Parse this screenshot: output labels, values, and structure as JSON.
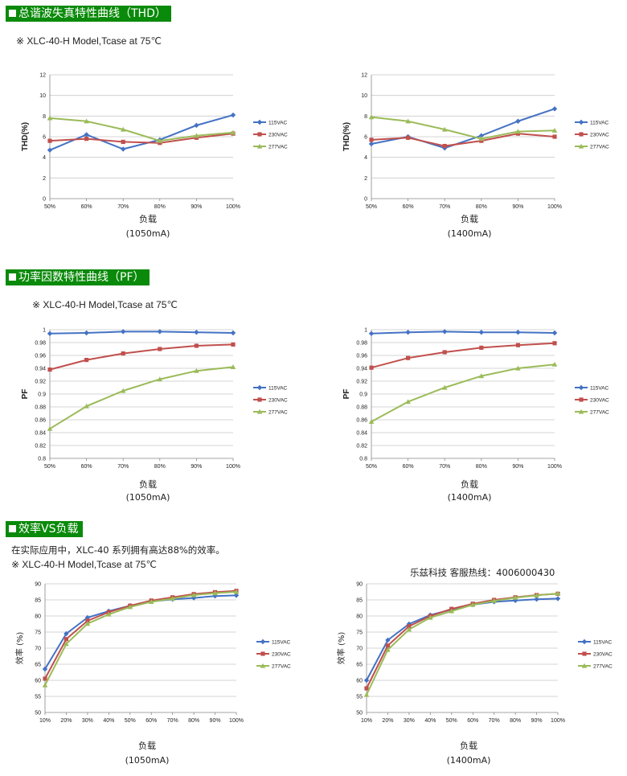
{
  "colors": {
    "banner": "#0a8a0a",
    "s115": "#4472c4",
    "s230": "#c0504d",
    "s277": "#9bbb59",
    "grid": "#c8c8c8"
  },
  "sections": {
    "thd": {
      "title": "总谐波失真特性曲线（THD）",
      "note": "※ XLC-40-H Model,Tcase at 75℃"
    },
    "pf": {
      "title": "功率因数特性曲线（PF）",
      "note": "※ XLC-40-H Model,Tcase at 75℃"
    },
    "eff": {
      "title": "效率VS负载",
      "note1": "在实际应用中，XLC-40 系列拥有高达88%的效率。",
      "note2": "※ XLC-40-H Model,Tcase at 75℃",
      "hotline": "乐兹科技 客服热线：4006000430"
    }
  },
  "chart_data": [
    {
      "type": "line",
      "xlabel": "负载",
      "xlabel2": "(1050mA)",
      "ylabel": "THD(%)",
      "categories": [
        "50%",
        "60%",
        "70%",
        "80%",
        "90%",
        "100%"
      ],
      "ylim": [
        0,
        12
      ],
      "yticks": [
        "0",
        "2",
        "4",
        "6",
        "8",
        "10",
        "12"
      ],
      "legend": "right",
      "grid": true,
      "series": [
        {
          "name": "115VAC",
          "values": [
            4.7,
            6.2,
            4.8,
            5.7,
            7.1,
            8.1
          ]
        },
        {
          "name": "230VAC",
          "values": [
            5.6,
            5.8,
            5.5,
            5.4,
            5.9,
            6.3
          ]
        },
        {
          "name": "277VAC",
          "values": [
            7.8,
            7.5,
            6.7,
            5.6,
            6.1,
            6.4
          ]
        }
      ]
    },
    {
      "type": "line",
      "xlabel": "负载",
      "xlabel2": "(1400mA)",
      "ylabel": "THD(%)",
      "categories": [
        "50%",
        "60%",
        "70%",
        "80%",
        "90%",
        "100%"
      ],
      "ylim": [
        0,
        12
      ],
      "yticks": [
        "0",
        "2",
        "4",
        "6",
        "8",
        "10",
        "12"
      ],
      "legend": "right",
      "grid": true,
      "series": [
        {
          "name": "115VAC",
          "values": [
            5.3,
            6.0,
            4.9,
            6.1,
            7.5,
            8.7
          ]
        },
        {
          "name": "230VAC",
          "values": [
            5.7,
            5.9,
            5.1,
            5.6,
            6.3,
            6.0
          ]
        },
        {
          "name": "277VAC",
          "values": [
            7.9,
            7.5,
            6.7,
            5.8,
            6.5,
            6.6
          ]
        }
      ]
    },
    {
      "type": "line",
      "xlabel": "负载",
      "xlabel2": "(1050mA)",
      "ylabel": "PF",
      "categories": [
        "50%",
        "60%",
        "70%",
        "80%",
        "90%",
        "100%"
      ],
      "ylim": [
        0.8,
        1.0
      ],
      "yticks": [
        "0.8",
        "0.82",
        "0.84",
        "0.86",
        "0.88",
        "0.9",
        "0.92",
        "0.94",
        "0.96",
        "0.98",
        "1"
      ],
      "legend": "right",
      "grid": true,
      "series": [
        {
          "name": "115VAC",
          "values": [
            0.994,
            0.995,
            0.997,
            0.997,
            0.996,
            0.995
          ]
        },
        {
          "name": "230VAC",
          "values": [
            0.938,
            0.953,
            0.963,
            0.97,
            0.975,
            0.977
          ]
        },
        {
          "name": "277VAC",
          "values": [
            0.846,
            0.881,
            0.905,
            0.923,
            0.936,
            0.942
          ]
        }
      ]
    },
    {
      "type": "line",
      "xlabel": "负载",
      "xlabel2": "(1400mA)",
      "ylabel": "PF",
      "categories": [
        "50%",
        "60%",
        "70%",
        "80%",
        "90%",
        "100%"
      ],
      "ylim": [
        0.8,
        1.0
      ],
      "yticks": [
        "0.8",
        "0.82",
        "0.84",
        "0.86",
        "0.88",
        "0.9",
        "0.92",
        "0.94",
        "0.96",
        "0.98",
        "1"
      ],
      "legend": "right",
      "grid": true,
      "series": [
        {
          "name": "115VAC",
          "values": [
            0.994,
            0.996,
            0.997,
            0.996,
            0.996,
            0.995
          ]
        },
        {
          "name": "230VAC",
          "values": [
            0.941,
            0.956,
            0.965,
            0.972,
            0.976,
            0.979
          ]
        },
        {
          "name": "277VAC",
          "values": [
            0.857,
            0.888,
            0.91,
            0.928,
            0.94,
            0.946
          ]
        }
      ]
    },
    {
      "type": "line",
      "xlabel": "负载",
      "xlabel2": "(1050mA)",
      "ylabel": "效率 (%)",
      "categories": [
        "10%",
        "20%",
        "30%",
        "40%",
        "50%",
        "60%",
        "70%",
        "80%",
        "90%",
        "100%"
      ],
      "ylim": [
        50,
        90
      ],
      "yticks": [
        "50",
        "55",
        "60",
        "65",
        "70",
        "75",
        "80",
        "85",
        "90"
      ],
      "legend": "right",
      "grid": true,
      "series": [
        {
          "name": "115VAC",
          "values": [
            63.5,
            74.5,
            79.5,
            81.5,
            83.2,
            84.5,
            85.2,
            85.6,
            86.2,
            86.4
          ]
        },
        {
          "name": "230VAC",
          "values": [
            60.5,
            72.8,
            78.5,
            81.2,
            83.2,
            84.8,
            85.8,
            86.8,
            87.4,
            87.8
          ]
        },
        {
          "name": "277VAC",
          "values": [
            58.5,
            71.3,
            77.6,
            80.5,
            82.8,
            84.4,
            85.4,
            86.5,
            87.1,
            87.5
          ]
        }
      ]
    },
    {
      "type": "line",
      "xlabel": "负载",
      "xlabel2": "(1400mA)",
      "ylabel": "效率 (%)",
      "categories": [
        "10%",
        "20%",
        "30%",
        "40%",
        "50%",
        "60%",
        "70%",
        "80%",
        "90%",
        "100%"
      ],
      "ylim": [
        50,
        90
      ],
      "yticks": [
        "50",
        "55",
        "60",
        "65",
        "70",
        "75",
        "80",
        "85",
        "90"
      ],
      "legend": "right",
      "grid": true,
      "series": [
        {
          "name": "115VAC",
          "values": [
            60.0,
            72.5,
            77.5,
            80.3,
            82.0,
            83.5,
            84.4,
            84.8,
            85.2,
            85.4
          ]
        },
        {
          "name": "230VAC",
          "values": [
            57.5,
            70.8,
            76.8,
            80.0,
            82.2,
            83.8,
            85.0,
            85.8,
            86.5,
            86.9
          ]
        },
        {
          "name": "277VAC",
          "values": [
            55.5,
            69.5,
            75.8,
            79.5,
            81.5,
            83.5,
            84.7,
            85.7,
            86.4,
            87.0
          ]
        }
      ]
    }
  ]
}
